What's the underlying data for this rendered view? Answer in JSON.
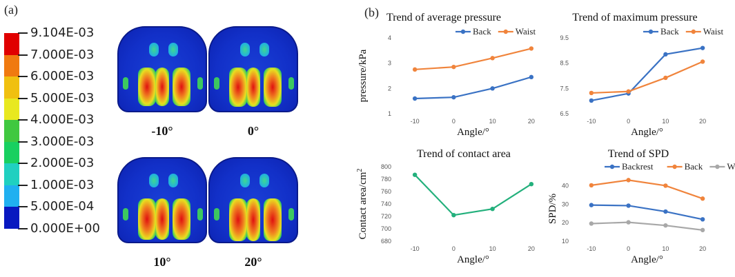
{
  "panel_a": {
    "tag": "(a)",
    "colorbar": [
      {
        "label": "9.104E-03",
        "color": "#e00000"
      },
      {
        "label": "7.000E-03",
        "color": "#f07a10"
      },
      {
        "label": "6.000E-03",
        "color": "#f0c010"
      },
      {
        "label": "5.000E-03",
        "color": "#e8e820"
      },
      {
        "label": "4.000E-03",
        "color": "#40c840"
      },
      {
        "label": "3.000E-03",
        "color": "#18d060"
      },
      {
        "label": "2.000E-03",
        "color": "#20d0c0"
      },
      {
        "label": "1.000E-03",
        "color": "#20b0f0"
      },
      {
        "label": "5.000E-04",
        "color": "#2060f0"
      },
      {
        "label": "0.000E+00",
        "color": "#0818c0"
      }
    ],
    "seat_labels": [
      "-10°",
      "0°",
      "10°",
      "20°"
    ]
  },
  "panel_b": {
    "tag": "(b)"
  },
  "colors": {
    "blue": "#3a72c4",
    "orange": "#f0843c",
    "green": "#23b07c",
    "gray": "#a8a8a8"
  },
  "chart_data": [
    {
      "type": "line",
      "title": "Trend of average pressure",
      "xlabel": "Angle/°",
      "ylabel": "pressure/kPa",
      "x": [
        -10,
        0,
        10,
        20
      ],
      "xticks": [
        "-10",
        "0",
        "10",
        "20"
      ],
      "yticks": [
        "1",
        "2",
        "3",
        "4"
      ],
      "ylim": [
        1,
        4
      ],
      "series": [
        {
          "name": "Back",
          "color": "#3a72c4",
          "values": [
            1.6,
            1.65,
            2.0,
            2.45
          ]
        },
        {
          "name": "Waist",
          "color": "#f0843c",
          "values": [
            2.75,
            2.85,
            3.2,
            3.58
          ]
        }
      ]
    },
    {
      "type": "line",
      "title": "Trend of maximum pressure",
      "xlabel": "Angle/°",
      "ylabel": "",
      "x": [
        -10,
        0,
        10,
        20
      ],
      "xticks": [
        "-10",
        "0",
        "10",
        "20"
      ],
      "yticks": [
        "6.5",
        "7.5",
        "8.5",
        "9.5"
      ],
      "ylim": [
        6.5,
        9.5
      ],
      "series": [
        {
          "name": "Back",
          "color": "#3a72c4",
          "values": [
            7.02,
            7.3,
            8.85,
            9.1
          ]
        },
        {
          "name": "Waist",
          "color": "#f0843c",
          "values": [
            7.32,
            7.38,
            7.92,
            8.56
          ]
        }
      ]
    },
    {
      "type": "line",
      "title": "Trend of contact area",
      "xlabel": "Angle/°",
      "ylabel": "Contact area/cm",
      "ylabel_sup": "2",
      "x": [
        -10,
        0,
        10,
        20
      ],
      "xticks": [
        "-10",
        "0",
        "10",
        "20"
      ],
      "yticks": [
        "680",
        "700",
        "720",
        "740",
        "760",
        "780",
        "800"
      ],
      "ylim": [
        680,
        800
      ],
      "series": [
        {
          "name": "",
          "color": "#23b07c",
          "values": [
            787,
            722,
            732,
            772
          ]
        }
      ]
    },
    {
      "type": "line",
      "title": "Trend of SPD",
      "xlabel": "Angle/°",
      "ylabel": "SPD/%",
      "x": [
        -10,
        0,
        10,
        20
      ],
      "xticks": [
        "-10",
        "0",
        "10",
        "20"
      ],
      "yticks": [
        "10",
        "20",
        "30",
        "40"
      ],
      "ylim": [
        10,
        45
      ],
      "series": [
        {
          "name": "Backrest",
          "color": "#3a72c4",
          "values": [
            29.5,
            29.2,
            26.0,
            21.8
          ]
        },
        {
          "name": "Back",
          "color": "#f0843c",
          "values": [
            40.2,
            43.0,
            40.0,
            33.0
          ]
        },
        {
          "name": "Waist",
          "color": "#a8a8a8",
          "values": [
            19.5,
            20.2,
            18.5,
            16.0
          ]
        }
      ]
    }
  ]
}
